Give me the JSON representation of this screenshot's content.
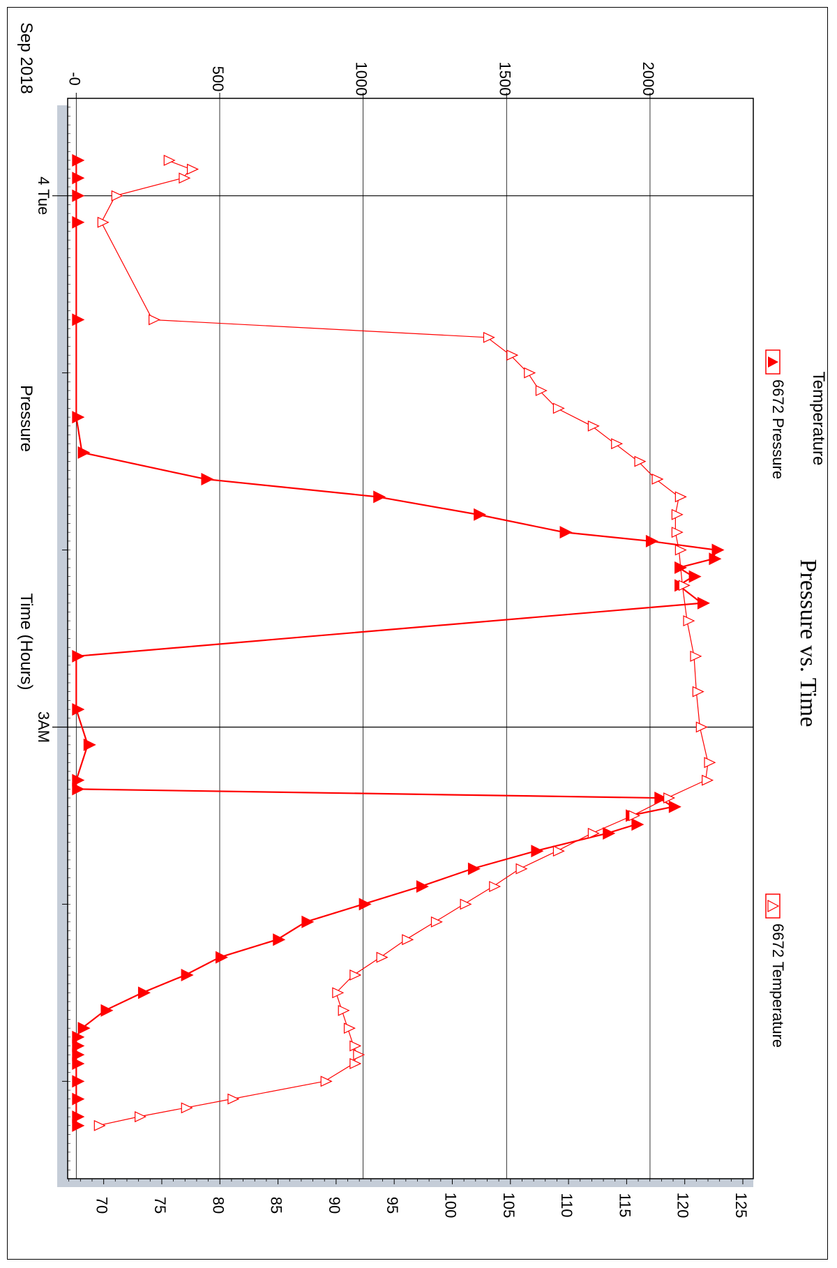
{
  "chart_data": {
    "type": "line",
    "title": "Pressure vs. Time",
    "xlabel": "Time (Hours)",
    "x_top_label": "Sep 2018",
    "x_tick_labels": [
      "4 Tue",
      "3AM"
    ],
    "x_range_hours": [
      -0.55,
      5.55
    ],
    "y_left": {
      "label": "Pressure",
      "range": [
        -30,
        2360
      ],
      "ticks": [
        0,
        500,
        1000,
        1500,
        2000
      ],
      "tick_labels": [
        "-0",
        "500",
        "1000",
        "1500",
        "2000"
      ]
    },
    "y_right": {
      "label": "Temperature",
      "range": [
        66.9,
        125.9
      ],
      "ticks": [
        70,
        75,
        80,
        85,
        90,
        95,
        100,
        105,
        110,
        115,
        120,
        125
      ],
      "tick_labels": [
        "70",
        "75",
        "80",
        "85",
        "90",
        "95",
        "100",
        "105",
        "110",
        "115",
        "120",
        "125"
      ]
    },
    "grid": true,
    "legend": [
      {
        "name": "6672 Pressure",
        "marker": "filled-triangle",
        "axis": "left"
      },
      {
        "name": "6672 Temperature",
        "marker": "open-triangle",
        "axis": "right"
      }
    ],
    "colors": {
      "series": "#ff0000",
      "frame": "#000000",
      "grid": "#000000",
      "side_bar": "#c5cdd8"
    },
    "series": [
      {
        "name": "6672 Pressure",
        "x": [
          -0.2,
          -0.1,
          0.0,
          0.15,
          0.7,
          1.25,
          1.45,
          1.6,
          1.7,
          1.8,
          1.9,
          1.95,
          2.0,
          2.05,
          2.1,
          2.15,
          2.2,
          2.3,
          2.6,
          2.9,
          3.1,
          3.3,
          3.35,
          3.4,
          3.45,
          3.5,
          3.55,
          3.6,
          3.7,
          3.8,
          3.9,
          4.0,
          4.1,
          4.2,
          4.3,
          4.4,
          4.5,
          4.6,
          4.7,
          4.75,
          4.8,
          4.85,
          4.9,
          5.0,
          5.1,
          5.2,
          5.25
        ],
        "y": [
          0,
          0,
          0,
          0,
          0,
          0,
          20,
          450,
          1050,
          1400,
          1700,
          2000,
          2230,
          2220,
          2100,
          2150,
          2100,
          2180,
          0,
          0,
          40,
          0,
          0,
          2030,
          2080,
          1930,
          1950,
          1850,
          1600,
          1380,
          1200,
          1000,
          800,
          700,
          500,
          380,
          230,
          100,
          20,
          0,
          0,
          0,
          0,
          0,
          0,
          0,
          0
        ]
      },
      {
        "name": "6672 Temperature",
        "x": [
          -0.2,
          -0.15,
          -0.1,
          0.0,
          0.15,
          0.7,
          0.8,
          0.9,
          1.0,
          1.1,
          1.2,
          1.3,
          1.4,
          1.5,
          1.6,
          1.7,
          1.8,
          1.9,
          2.0,
          2.2,
          2.4,
          2.6,
          2.8,
          3.0,
          3.2,
          3.3,
          3.4,
          3.5,
          3.6,
          3.7,
          3.8,
          3.9,
          4.0,
          4.1,
          4.2,
          4.3,
          4.4,
          4.5,
          4.6,
          4.7,
          4.8,
          4.85,
          4.9,
          5.0,
          5.1,
          5.15,
          5.2,
          5.25
        ],
        "y": [
          75.5,
          77.5,
          76.8,
          71,
          69.8,
          74.2,
          103,
          105,
          106.5,
          107.5,
          109,
          112,
          114,
          116,
          117.5,
          119.5,
          119.2,
          119.2,
          119.5,
          119.8,
          120.2,
          120.8,
          121,
          121.3,
          122,
          121.8,
          118.5,
          115.5,
          112,
          109,
          105.8,
          103.5,
          101,
          98.5,
          96,
          93.8,
          91.5,
          90,
          90.5,
          91,
          91.5,
          91.8,
          91.5,
          89,
          81,
          77,
          73,
          69.5
        ]
      }
    ]
  }
}
